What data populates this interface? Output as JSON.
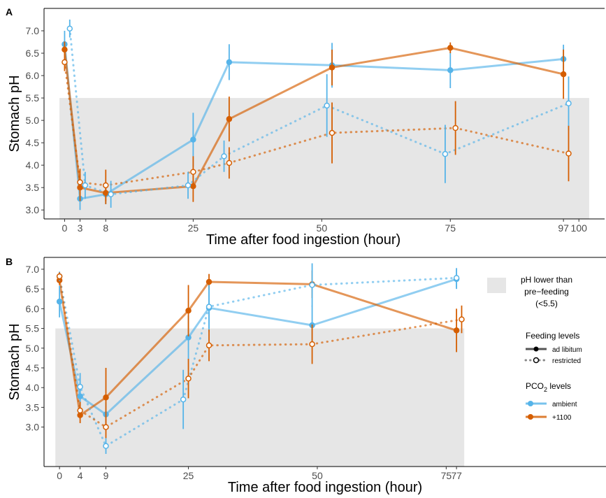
{
  "chart_data": [
    {
      "panel": "A",
      "type": "line",
      "xlabel": "Time after food ingestion (hour)",
      "ylabel": "Stomach pH",
      "xticks": [
        0,
        3,
        8,
        25,
        50,
        75,
        97,
        100
      ],
      "xtick_labels": [
        "0",
        "3",
        "8",
        "25",
        "50",
        "75",
        "97",
        "100"
      ],
      "xlim": [
        -4,
        105
      ],
      "yticks": [
        3.0,
        3.5,
        4.0,
        4.5,
        5.0,
        5.5,
        6.0,
        6.5,
        7.0
      ],
      "ytick_labels": [
        "3.0",
        "3.5",
        "4.0",
        "4.5",
        "5.0",
        "5.5",
        "6.0",
        "6.5",
        "7.0"
      ],
      "ylim": [
        2.8,
        7.5
      ],
      "band": {
        "ymin": 2.8,
        "ymax": 5.5,
        "xmin": -1,
        "xmax": 102
      },
      "series": [
        {
          "name": "ambient",
          "feeding": "ad libitum",
          "color": "#56B4E9",
          "x": [
            0,
            3,
            8,
            25,
            32,
            52,
            75,
            97
          ],
          "y": [
            6.7,
            3.25,
            3.35,
            4.57,
            6.3,
            6.23,
            6.12,
            6.37
          ],
          "err": [
            0.3,
            0.25,
            0.22,
            0.6,
            0.4,
            0.5,
            0.4,
            0.32
          ]
        },
        {
          "name": "+1100",
          "feeding": "ad libitum",
          "color": "#D55E00",
          "x": [
            0,
            3,
            8,
            25,
            32,
            52,
            75,
            97
          ],
          "y": [
            6.58,
            3.5,
            3.38,
            3.53,
            5.03,
            6.18,
            6.62,
            6.03
          ],
          "err": [
            0.18,
            0.3,
            0.25,
            0.35,
            0.5,
            0.4,
            0.12,
            0.55
          ]
        },
        {
          "name": "ambient",
          "feeding": "restricted",
          "color": "#56B4E9",
          "x": [
            1,
            4,
            9,
            24,
            31,
            51,
            74,
            98
          ],
          "y": [
            7.05,
            3.55,
            3.35,
            3.55,
            4.2,
            5.33,
            4.25,
            5.38
          ],
          "err": [
            0.2,
            0.3,
            0.3,
            0.3,
            0.35,
            0.7,
            0.65,
            0.6
          ]
        },
        {
          "name": "+1100",
          "feeding": "restricted",
          "color": "#D55E00",
          "x": [
            0,
            3,
            8,
            25,
            32,
            52,
            76,
            98
          ],
          "y": [
            6.3,
            3.62,
            3.55,
            3.85,
            4.05,
            4.72,
            4.83,
            4.26
          ],
          "err": [
            0.2,
            0.3,
            0.35,
            0.35,
            0.35,
            0.68,
            0.6,
            0.62
          ]
        }
      ]
    },
    {
      "panel": "B",
      "type": "line",
      "xlabel": "Time after food ingestion (hour)",
      "ylabel": "Stomach pH",
      "xticks": [
        0,
        4,
        9,
        25,
        50,
        75,
        77
      ],
      "xtick_labels": [
        "0",
        "4",
        "9",
        "25",
        "50",
        "75",
        "77"
      ],
      "xlim": [
        -3,
        82
      ],
      "yticks": [
        3.0,
        3.5,
        4.0,
        4.5,
        5.0,
        5.5,
        6.0,
        6.5,
        7.0
      ],
      "ytick_labels": [
        "3.0",
        "3.5",
        "4.0",
        "4.5",
        "5.0",
        "5.5",
        "6.0",
        "6.5",
        "7.0"
      ],
      "ylim": [
        2.0,
        7.3
      ],
      "band": {
        "ymin": 2.0,
        "ymax": 5.5,
        "xmin": -0.8,
        "xmax": 78.5
      },
      "series": [
        {
          "name": "ambient",
          "feeding": "ad libitum",
          "color": "#56B4E9",
          "x": [
            0,
            4,
            9,
            25,
            29,
            49,
            77
          ],
          "y": [
            6.18,
            3.78,
            3.32,
            5.27,
            6.02,
            5.58,
            6.75
          ],
          "err": [
            0.4,
            0.35,
            0.3,
            0.55,
            0.6,
            0.5,
            0.25
          ]
        },
        {
          "name": "+1100",
          "feeding": "ad libitum",
          "color": "#D55E00",
          "x": [
            0,
            4,
            9,
            25,
            29,
            49,
            77
          ],
          "y": [
            6.72,
            3.3,
            3.75,
            5.95,
            6.68,
            6.62,
            5.45
          ],
          "err": [
            0.12,
            0.2,
            0.75,
            0.65,
            0.2,
            0.35,
            0.55
          ]
        },
        {
          "name": "ambient",
          "feeding": "restricted",
          "color": "#56B4E9",
          "x": [
            0,
            4,
            9,
            24,
            29,
            49,
            77
          ],
          "y": [
            6.82,
            4.02,
            2.52,
            3.7,
            6.05,
            6.6,
            6.78
          ],
          "err": [
            0.12,
            0.35,
            0.2,
            0.75,
            0.55,
            0.55,
            0.25
          ]
        },
        {
          "name": "+1100",
          "feeding": "restricted",
          "color": "#D55E00",
          "x": [
            0,
            4,
            9,
            25,
            29,
            49,
            78
          ],
          "y": [
            6.82,
            3.42,
            3.0,
            4.23,
            5.07,
            5.1,
            5.73
          ],
          "err": [
            0.1,
            0.22,
            0.28,
            0.5,
            0.4,
            0.5,
            0.35
          ]
        }
      ]
    }
  ],
  "legend": {
    "band_label": [
      "pH lower than",
      "pre−feeding",
      "(<5.5)"
    ],
    "feeding_title": "Feeding levels",
    "feeding_items": [
      "ad libitum",
      "restricted"
    ],
    "pco2_title_main": "PCO",
    "pco2_title_sub": "2",
    "pco2_title_rest": " levels",
    "pco2_items": [
      {
        "label": "ambient",
        "color": "#56B4E9"
      },
      {
        "label": "+1100",
        "color": "#D55E00"
      }
    ]
  }
}
